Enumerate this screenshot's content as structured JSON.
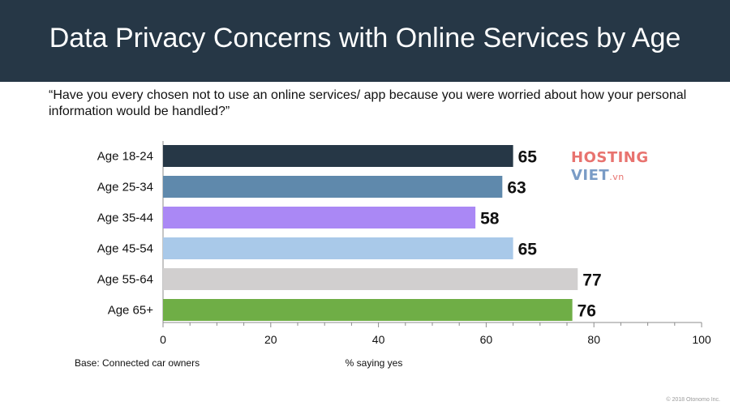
{
  "header": {
    "title": "Data Privacy Concerns with Online Services by Age",
    "background": "#263746"
  },
  "subtitle": "“Have you every chosen not to use an online services/ app because you were worried about how your personal information would be handled?”",
  "footer": {
    "base_note": "Base: Connected car owners",
    "copyright": "© 2018 Otonomo Inc."
  },
  "watermark": {
    "line1": "HOSTING",
    "line2": "VIET",
    "line2_suffix": ".vn",
    "color1": "#e8736f",
    "color2": "#7a9cc6"
  },
  "chart_data": {
    "type": "bar",
    "orientation": "horizontal",
    "categories": [
      "Age 18-24",
      "Age 25-34",
      "Age 35-44",
      "Age 45-54",
      "Age 55-64",
      "Age 65+"
    ],
    "values": [
      65,
      63,
      58,
      65,
      77,
      76
    ],
    "colors": [
      "#263746",
      "#5f89ac",
      "#aa88f5",
      "#a9c9e9",
      "#d1cfcf",
      "#6fae46"
    ],
    "xlabel": "% saying yes",
    "xlim": [
      0,
      100
    ],
    "x_ticks": [
      0,
      20,
      40,
      60,
      80,
      100
    ],
    "grid": false,
    "data_labels": true
  }
}
